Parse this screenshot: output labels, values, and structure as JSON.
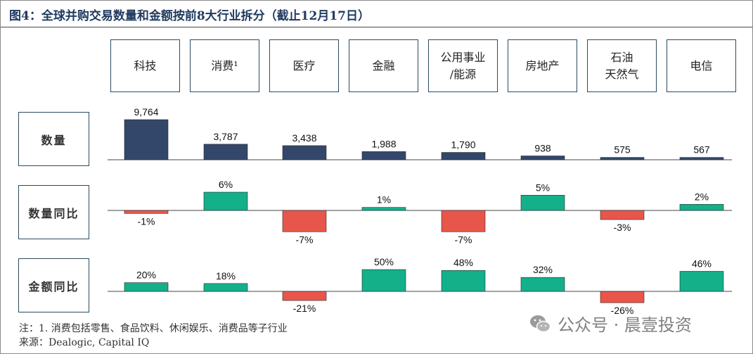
{
  "title": "图4：全球并购交易数量和金额按前8大行业拆分（截止12月17日）",
  "categories": [
    "科技",
    "消费¹",
    "医疗",
    "金融",
    "公用事业\n/能源",
    "房地产",
    "石油\n天然气",
    "电信"
  ],
  "row_labels": {
    "count": "数量",
    "count_yoy": "数量同比",
    "amount_yoy": "金额同比"
  },
  "chart_data": [
    {
      "type": "bar",
      "row": "数量",
      "categories": [
        "科技",
        "消费",
        "医疗",
        "金融",
        "公用事业/能源",
        "房地产",
        "石油天然气",
        "电信"
      ],
      "values": [
        9764,
        3787,
        3438,
        1988,
        1790,
        938,
        575,
        567
      ],
      "labels": [
        "9,764",
        "3,787",
        "3,438",
        "1,988",
        "1,790",
        "938",
        "575",
        "567"
      ]
    },
    {
      "type": "bar",
      "row": "数量同比",
      "unit": "%",
      "categories": [
        "科技",
        "消费",
        "医疗",
        "金融",
        "公用事业/能源",
        "房地产",
        "石油天然气",
        "电信"
      ],
      "values": [
        -1,
        6,
        -7,
        1,
        -7,
        5,
        -3,
        2
      ],
      "labels": [
        "-1%",
        "6%",
        "-7%",
        "1%",
        "-7%",
        "5%",
        "-3%",
        "2%"
      ]
    },
    {
      "type": "bar",
      "row": "金额同比",
      "unit": "%",
      "categories": [
        "科技",
        "消费",
        "医疗",
        "金融",
        "公用事业/能源",
        "房地产",
        "石油天然气",
        "电信"
      ],
      "values": [
        20,
        18,
        -21,
        50,
        48,
        32,
        -26,
        46
      ],
      "labels": [
        "20%",
        "18%",
        "-21%",
        "50%",
        "48%",
        "32%",
        "-26%",
        "46%"
      ]
    }
  ],
  "colors": {
    "count_bar": "#33476a",
    "positive": "#13b08a",
    "negative": "#e8564b",
    "title": "#1f3a5f"
  },
  "footnotes": {
    "note": "注：1. 消费包括零售、食品饮料、休闲娱乐、消费品等子行业",
    "source": "来源：Dealogic, Capital IQ"
  },
  "watermark": {
    "icon": "wechat-icon",
    "text": "公众号 · 晨壹投资"
  }
}
